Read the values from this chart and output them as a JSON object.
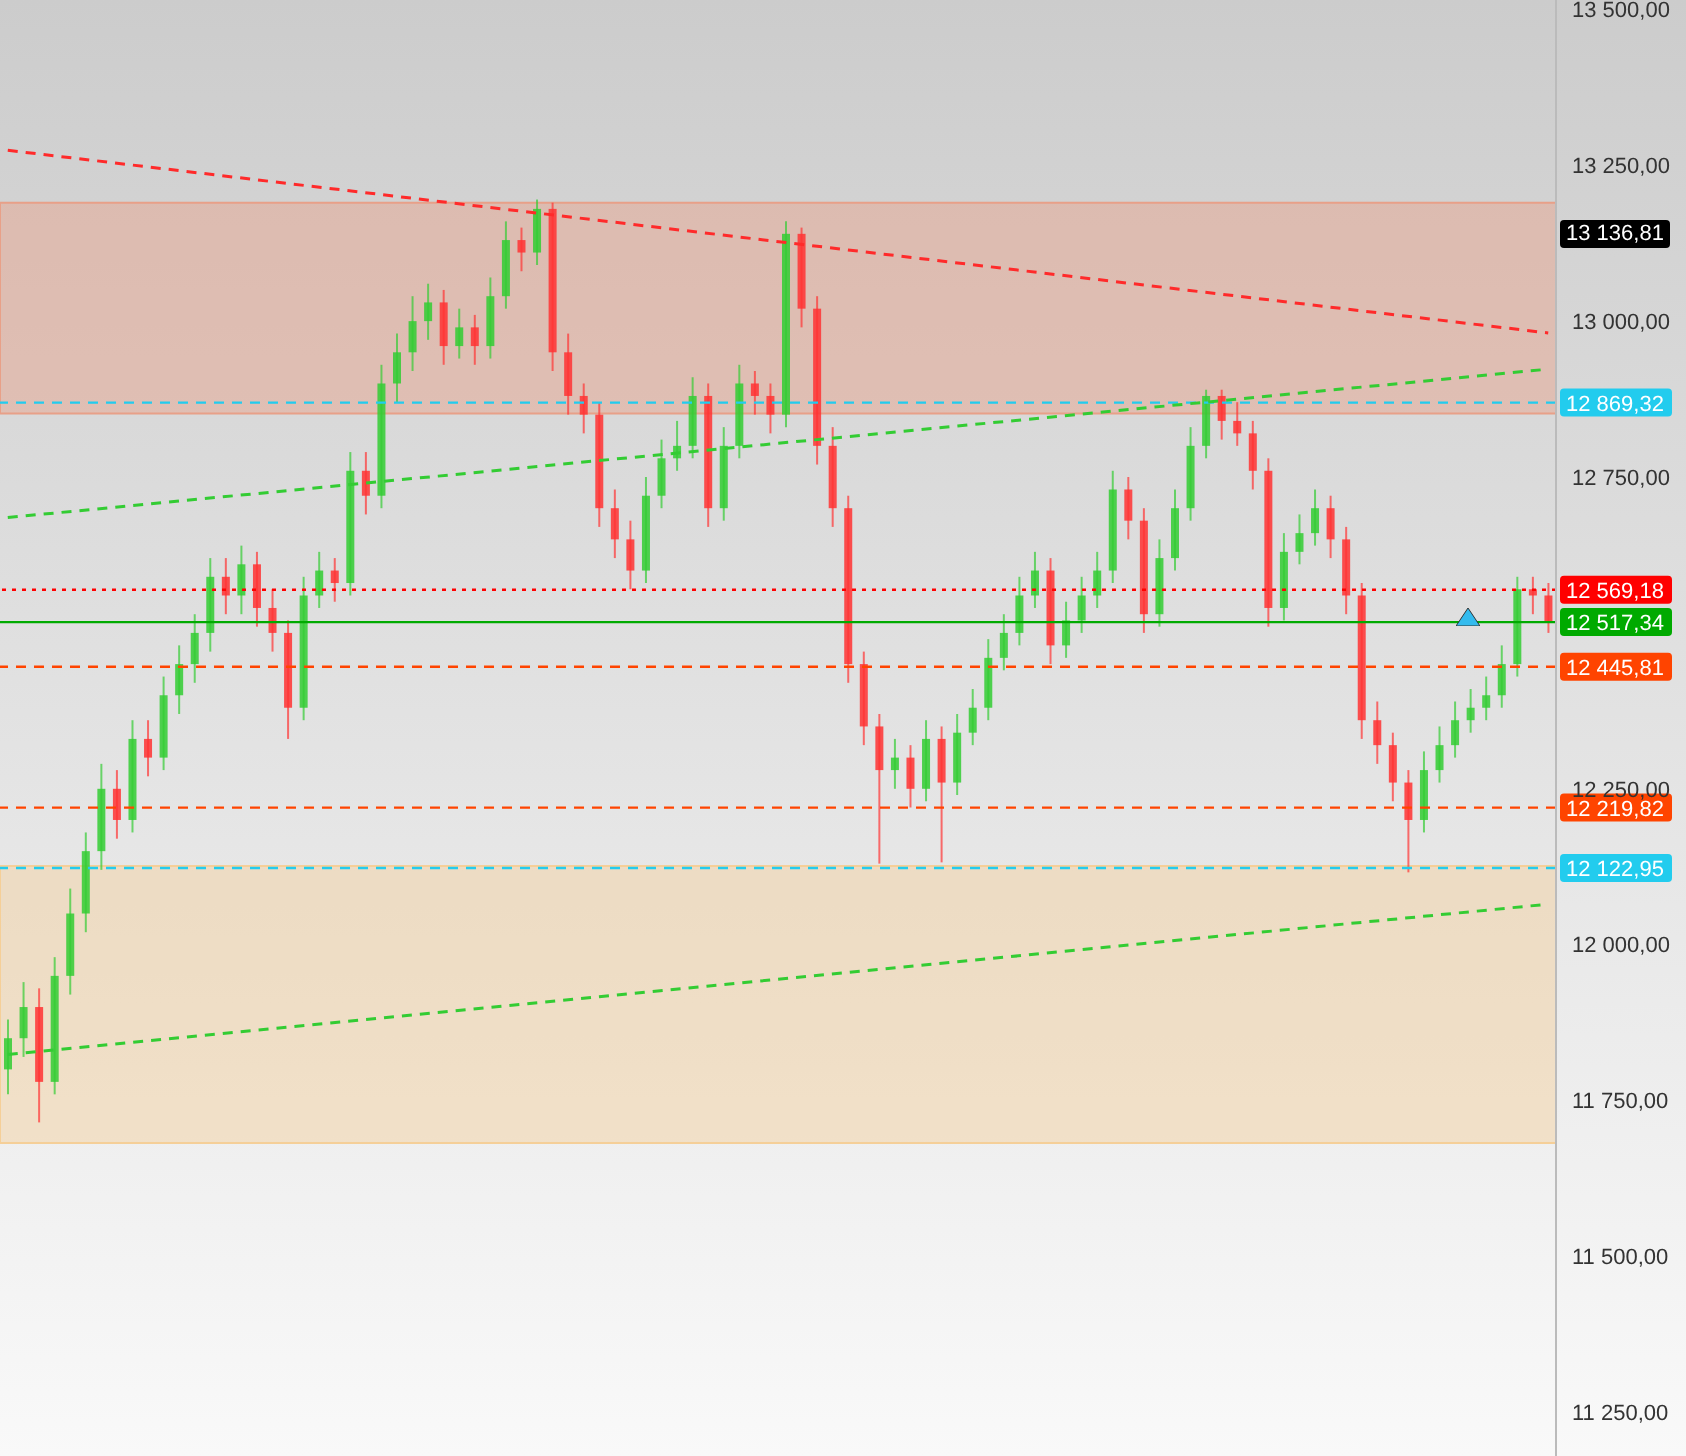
{
  "chart_data": {
    "type": "candlestick",
    "categories": [
      null,
      null,
      null,
      null,
      null,
      null,
      null,
      null,
      null,
      null,
      null,
      null,
      null,
      null,
      null,
      null,
      null,
      null,
      null,
      null,
      null,
      null,
      null,
      null,
      null,
      null,
      null,
      null,
      null,
      null,
      null,
      null,
      null,
      null,
      null,
      null,
      null,
      null,
      null,
      null,
      null,
      null,
      null,
      null,
      null,
      null,
      null,
      null,
      null,
      null,
      null,
      null,
      null,
      null,
      null,
      null,
      null,
      null,
      null,
      null,
      null,
      null,
      null,
      null,
      null,
      null,
      null,
      null,
      null,
      null,
      null,
      null,
      null,
      null,
      null,
      null,
      null,
      null,
      null,
      null,
      null,
      null,
      null,
      null,
      null,
      null,
      null,
      null,
      null,
      null,
      null,
      null,
      null,
      null,
      null,
      null,
      null,
      null,
      null,
      null
    ],
    "ohlc": [
      [
        11800,
        11880,
        11760,
        11850
      ],
      [
        11850,
        11940,
        11820,
        11900
      ],
      [
        11900,
        11930,
        11715,
        11780
      ],
      [
        11780,
        11980,
        11760,
        11950
      ],
      [
        11950,
        12090,
        11920,
        12050
      ],
      [
        12050,
        12180,
        12020,
        12150
      ],
      [
        12150,
        12290,
        12120,
        12250
      ],
      [
        12250,
        12280,
        12170,
        12200
      ],
      [
        12200,
        12360,
        12180,
        12330
      ],
      [
        12330,
        12360,
        12270,
        12300
      ],
      [
        12300,
        12430,
        12280,
        12400
      ],
      [
        12400,
        12480,
        12370,
        12450
      ],
      [
        12450,
        12530,
        12420,
        12500
      ],
      [
        12500,
        12620,
        12470,
        12590
      ],
      [
        12590,
        12620,
        12530,
        12560
      ],
      [
        12560,
        12640,
        12530,
        12610
      ],
      [
        12610,
        12630,
        12510,
        12540
      ],
      [
        12540,
        12570,
        12470,
        12500
      ],
      [
        12500,
        12520,
        12330,
        12380
      ],
      [
        12380,
        12590,
        12360,
        12560
      ],
      [
        12560,
        12630,
        12540,
        12600
      ],
      [
        12600,
        12620,
        12550,
        12580
      ],
      [
        12580,
        12790,
        12560,
        12760
      ],
      [
        12760,
        12790,
        12690,
        12720
      ],
      [
        12720,
        12930,
        12700,
        12900
      ],
      [
        12900,
        12980,
        12870,
        12950
      ],
      [
        12950,
        13040,
        12920,
        13000
      ],
      [
        13000,
        13060,
        12970,
        13030
      ],
      [
        13030,
        13050,
        12930,
        12960
      ],
      [
        12960,
        13020,
        12940,
        12990
      ],
      [
        12990,
        13010,
        12930,
        12960
      ],
      [
        12960,
        13070,
        12940,
        13040
      ],
      [
        13040,
        13160,
        13020,
        13130
      ],
      [
        13130,
        13150,
        13080,
        13110
      ],
      [
        13110,
        13195,
        13090,
        13180
      ],
      [
        13180,
        13190,
        12920,
        12950
      ],
      [
        12950,
        12980,
        12850,
        12880
      ],
      [
        12880,
        12900,
        12820,
        12850
      ],
      [
        12850,
        12870,
        12670,
        12700
      ],
      [
        12700,
        12730,
        12620,
        12650
      ],
      [
        12650,
        12680,
        12570,
        12600
      ],
      [
        12600,
        12750,
        12580,
        12720
      ],
      [
        12720,
        12810,
        12700,
        12780
      ],
      [
        12780,
        12840,
        12760,
        12800
      ],
      [
        12800,
        12910,
        12780,
        12880
      ],
      [
        12880,
        12900,
        12670,
        12700
      ],
      [
        12700,
        12830,
        12680,
        12800
      ],
      [
        12800,
        12930,
        12780,
        12900
      ],
      [
        12900,
        12920,
        12850,
        12880
      ],
      [
        12880,
        12900,
        12820,
        12850
      ],
      [
        12850,
        13160,
        12830,
        13140
      ],
      [
        13140,
        13150,
        12990,
        13020
      ],
      [
        13020,
        13040,
        12770,
        12800
      ],
      [
        12800,
        12830,
        12670,
        12700
      ],
      [
        12700,
        12720,
        12420,
        12450
      ],
      [
        12450,
        12470,
        12320,
        12350
      ],
      [
        12350,
        12370,
        12130,
        12280
      ],
      [
        12280,
        12330,
        12250,
        12300
      ],
      [
        12300,
        12320,
        12220,
        12250
      ],
      [
        12250,
        12360,
        12230,
        12330
      ],
      [
        12330,
        12350,
        12132,
        12260
      ],
      [
        12260,
        12370,
        12240,
        12340
      ],
      [
        12340,
        12410,
        12320,
        12380
      ],
      [
        12380,
        12490,
        12360,
        12460
      ],
      [
        12460,
        12530,
        12440,
        12500
      ],
      [
        12500,
        12590,
        12480,
        12560
      ],
      [
        12560,
        12630,
        12540,
        12600
      ],
      [
        12600,
        12620,
        12450,
        12480
      ],
      [
        12480,
        12550,
        12460,
        12520
      ],
      [
        12520,
        12590,
        12500,
        12560
      ],
      [
        12560,
        12630,
        12540,
        12600
      ],
      [
        12600,
        12760,
        12580,
        12730
      ],
      [
        12730,
        12750,
        12650,
        12680
      ],
      [
        12680,
        12700,
        12500,
        12530
      ],
      [
        12530,
        12650,
        12510,
        12620
      ],
      [
        12620,
        12730,
        12600,
        12700
      ],
      [
        12700,
        12830,
        12680,
        12800
      ],
      [
        12800,
        12890,
        12780,
        12880
      ],
      [
        12880,
        12890,
        12810,
        12840
      ],
      [
        12840,
        12870,
        12800,
        12820
      ],
      [
        12820,
        12840,
        12730,
        12760
      ],
      [
        12760,
        12780,
        12510,
        12540
      ],
      [
        12540,
        12660,
        12520,
        12630
      ],
      [
        12630,
        12690,
        12610,
        12660
      ],
      [
        12660,
        12730,
        12640,
        12700
      ],
      [
        12700,
        12720,
        12620,
        12650
      ],
      [
        12650,
        12670,
        12530,
        12560
      ],
      [
        12560,
        12580,
        12330,
        12360
      ],
      [
        12360,
        12390,
        12290,
        12320
      ],
      [
        12320,
        12340,
        12230,
        12260
      ],
      [
        12260,
        12280,
        12116,
        12200
      ],
      [
        12200,
        12310,
        12180,
        12280
      ],
      [
        12280,
        12350,
        12260,
        12320
      ],
      [
        12320,
        12390,
        12300,
        12360
      ],
      [
        12360,
        12410,
        12340,
        12380
      ],
      [
        12380,
        12430,
        12360,
        12400
      ],
      [
        12400,
        12480,
        12380,
        12450
      ],
      [
        12450,
        12590,
        12430,
        12570
      ],
      [
        12570,
        12590,
        12530,
        12560
      ],
      [
        12560,
        12580,
        12500,
        12517
      ]
    ],
    "series": [
      {
        "type": "line",
        "values": [
          13274,
          null,
          null,
          null,
          null,
          null,
          null,
          null,
          null,
          null,
          null,
          null,
          null,
          null,
          null,
          null,
          null,
          null,
          null,
          null,
          null,
          null,
          null,
          null,
          null,
          null,
          null,
          null,
          null,
          null,
          null,
          null,
          null,
          null,
          null,
          null,
          null,
          null,
          null,
          null,
          null,
          null,
          null,
          null,
          null,
          null,
          null,
          null,
          null,
          null,
          null,
          null,
          null,
          null,
          null,
          null,
          null,
          null,
          null,
          null,
          null,
          null,
          null,
          null,
          null,
          null,
          null,
          null,
          null,
          null,
          null,
          null,
          null,
          null,
          null,
          null,
          null,
          null,
          null,
          null,
          null,
          null,
          null,
          null,
          null,
          null,
          null,
          null,
          null,
          null,
          null,
          null,
          null,
          null,
          null,
          null,
          null,
          null,
          null,
          12981
        ],
        "color": "#ff2a2a",
        "line_style": "dashed"
      },
      {
        "type": "line",
        "values": [
          12685,
          null,
          null,
          null,
          null,
          null,
          null,
          null,
          null,
          null,
          null,
          null,
          null,
          null,
          null,
          null,
          null,
          null,
          null,
          null,
          null,
          null,
          null,
          null,
          null,
          null,
          null,
          null,
          null,
          null,
          null,
          null,
          null,
          null,
          null,
          null,
          null,
          null,
          null,
          null,
          null,
          null,
          null,
          null,
          null,
          null,
          null,
          null,
          null,
          null,
          null,
          null,
          null,
          null,
          null,
          null,
          null,
          null,
          null,
          null,
          null,
          null,
          null,
          null,
          null,
          null,
          null,
          null,
          null,
          null,
          null,
          null,
          null,
          null,
          null,
          null,
          null,
          null,
          null,
          null,
          null,
          null,
          null,
          null,
          null,
          null,
          null,
          null,
          null,
          null,
          null,
          null,
          null,
          null,
          null,
          null,
          null,
          null,
          null,
          12923
        ],
        "color": "#33cc33",
        "line_style": "dashed"
      },
      {
        "type": "line",
        "values": [
          11824,
          null,
          null,
          null,
          null,
          null,
          null,
          null,
          null,
          null,
          null,
          null,
          null,
          null,
          null,
          null,
          null,
          null,
          null,
          null,
          null,
          null,
          null,
          null,
          null,
          null,
          null,
          null,
          null,
          null,
          null,
          null,
          null,
          null,
          null,
          null,
          null,
          null,
          null,
          null,
          null,
          null,
          null,
          null,
          null,
          null,
          null,
          null,
          null,
          null,
          null,
          null,
          null,
          null,
          null,
          null,
          null,
          null,
          null,
          null,
          null,
          null,
          null,
          null,
          null,
          null,
          null,
          null,
          null,
          null,
          null,
          null,
          null,
          null,
          null,
          null,
          null,
          null,
          null,
          null,
          null,
          null,
          null,
          null,
          null,
          null,
          null,
          null,
          null,
          null,
          null,
          null,
          null,
          null,
          null,
          null,
          null,
          null,
          null,
          12065
        ],
        "color": "#33cc33",
        "line_style": "dashed"
      }
    ],
    "ylim": [
      11180,
      13515
    ],
    "yticks": [
      {
        "value": 11250,
        "label": "11 250,00"
      },
      {
        "value": 11500,
        "label": "11 500,00"
      },
      {
        "value": 11750,
        "label": "11 750,00"
      },
      {
        "value": 12000,
        "label": "12 000,00"
      },
      {
        "value": 12250,
        "label": "12 250,00"
      },
      {
        "value": 12750,
        "label": "12 750,00"
      },
      {
        "value": 13000,
        "label": "13 000,00"
      },
      {
        "value": 13250,
        "label": "13 250,00"
      },
      {
        "value": 13500,
        "label": "13 500,00"
      }
    ],
    "tick_labels": "y",
    "bands": [
      {
        "axis": "y",
        "from": 12852,
        "to": 13190,
        "color": "#e8a088"
      },
      {
        "axis": "y",
        "from": 11682,
        "to": 12126,
        "color": "#f5cf98"
      }
    ],
    "ref_lines": [
      {
        "axis": "y",
        "value": 12869.32,
        "label": "12 869,32",
        "color": "#22ccee",
        "line_style": "dashed"
      },
      {
        "axis": "y",
        "value": 12569.18,
        "label": "12 569,18",
        "color": "#ff0000",
        "line_style": "dotted"
      },
      {
        "axis": "y",
        "value": 12517.34,
        "label": "12 517,34",
        "color": "#00aa00",
        "line_style": "solid"
      },
      {
        "axis": "y",
        "value": 12445.81,
        "label": "12 445,81",
        "color": "#ff4400",
        "line_style": "dashed"
      },
      {
        "axis": "y",
        "value": 12219.82,
        "label": "12 219,82",
        "color": "#ff4400",
        "line_style": "dashed"
      },
      {
        "axis": "y",
        "value": 12122.95,
        "label": "12 122,95",
        "color": "#22ccee",
        "line_style": "dashed"
      }
    ],
    "annotations": [
      "13 136,81"
    ]
  }
}
